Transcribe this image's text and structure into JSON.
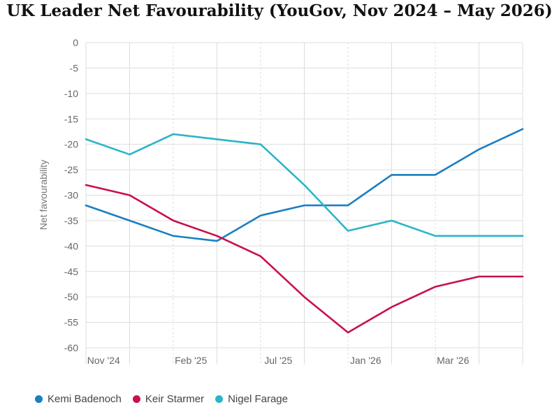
{
  "chart_data": {
    "type": "line",
    "title": "UK Leader Net Favourability (YouGov, Nov 2024 – May 2026)",
    "ylabel": "Net favourability",
    "xlabel": "",
    "x_tick_labels": [
      "Nov '24",
      "Feb '25",
      "Jul '25",
      "Jan '26",
      "Mar '26"
    ],
    "ylim": [
      -60,
      0
    ],
    "y_tick_step": 5,
    "grid": true,
    "legend_position": "bottom-left",
    "series": [
      {
        "name": "Kemi Badenoch",
        "color": "#1a7fc1",
        "values": [
          -32,
          -35,
          -38,
          -39,
          -34,
          -32,
          -32,
          -26,
          -26,
          -21,
          -17
        ]
      },
      {
        "name": "Keir Starmer",
        "color": "#c8104a",
        "values": [
          -28,
          -30,
          -35,
          -38,
          -42,
          -50,
          -57,
          -52,
          -48,
          -46,
          -46
        ]
      },
      {
        "name": "Nigel Farage",
        "color": "#2ab5c7",
        "values": [
          -19,
          -22,
          -18,
          -19,
          -20,
          -28,
          -37,
          -35,
          -38,
          -38,
          -38
        ]
      }
    ]
  }
}
